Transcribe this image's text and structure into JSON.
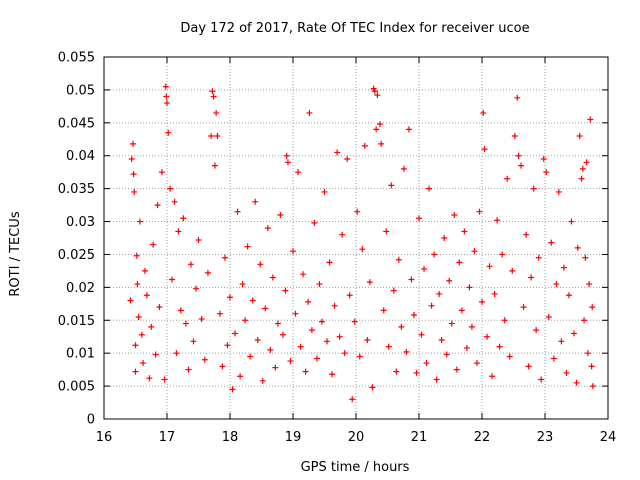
{
  "chart_data": {
    "type": "scatter",
    "title": "Day 172 of 2017, Rate Of TEC Index for receiver ucoe",
    "xlabel": "GPS time / hours",
    "ylabel": "ROTI / TECUs",
    "xlim": [
      16,
      24
    ],
    "ylim": [
      0,
      0.055
    ],
    "x_ticks": [
      16,
      17,
      18,
      19,
      20,
      21,
      22,
      23,
      24
    ],
    "x_tick_labels": [
      "16",
      "17",
      "18",
      "19",
      "20",
      "21",
      "22",
      "23",
      "24"
    ],
    "y_ticks": [
      0,
      0.005,
      0.01,
      0.015,
      0.02,
      0.025,
      0.03,
      0.035,
      0.04,
      0.045,
      0.05,
      0.055
    ],
    "y_tick_labels": [
      "0",
      "0.005",
      "0.01",
      "0.015",
      "0.02",
      "0.025",
      "0.03",
      "0.035",
      "0.04",
      "0.045",
      "0.05",
      "0.055"
    ],
    "grid": true,
    "marker": "+",
    "marker_color": "#ff0000",
    "series": [
      {
        "name": "ROTI",
        "points": [
          [
            16.42,
            0.018
          ],
          [
            16.44,
            0.0395
          ],
          [
            16.46,
            0.0418
          ],
          [
            16.47,
            0.0372
          ],
          [
            16.48,
            0.0345
          ],
          [
            16.5,
            0.0112
          ],
          [
            16.5,
            0.0072
          ],
          [
            16.52,
            0.0248
          ],
          [
            16.53,
            0.0205
          ],
          [
            16.55,
            0.0155
          ],
          [
            16.57,
            0.03
          ],
          [
            16.6,
            0.0128
          ],
          [
            16.62,
            0.0085
          ],
          [
            16.65,
            0.0225
          ],
          [
            16.68,
            0.0188
          ],
          [
            16.72,
            0.0062
          ],
          [
            16.75,
            0.014
          ],
          [
            16.78,
            0.0265
          ],
          [
            16.82,
            0.0098
          ],
          [
            16.85,
            0.0325
          ],
          [
            16.88,
            0.017
          ],
          [
            16.92,
            0.0375
          ],
          [
            16.96,
            0.006
          ],
          [
            16.98,
            0.0505
          ],
          [
            16.99,
            0.049
          ],
          [
            17.0,
            0.048
          ],
          [
            17.02,
            0.0435
          ],
          [
            17.05,
            0.035
          ],
          [
            17.08,
            0.0212
          ],
          [
            17.12,
            0.033
          ],
          [
            17.15,
            0.01
          ],
          [
            17.18,
            0.0285
          ],
          [
            17.22,
            0.0165
          ],
          [
            17.26,
            0.0305
          ],
          [
            17.3,
            0.0145
          ],
          [
            17.34,
            0.0075
          ],
          [
            17.38,
            0.0235
          ],
          [
            17.42,
            0.0118
          ],
          [
            17.46,
            0.0198
          ],
          [
            17.5,
            0.0272
          ],
          [
            17.55,
            0.0152
          ],
          [
            17.6,
            0.009
          ],
          [
            17.65,
            0.0222
          ],
          [
            17.7,
            0.043
          ],
          [
            17.72,
            0.0498
          ],
          [
            17.74,
            0.049
          ],
          [
            17.76,
            0.0385
          ],
          [
            17.78,
            0.0465
          ],
          [
            17.8,
            0.043
          ],
          [
            17.84,
            0.016
          ],
          [
            17.88,
            0.008
          ],
          [
            17.92,
            0.0245
          ],
          [
            17.96,
            0.0112
          ],
          [
            18.0,
            0.0185
          ],
          [
            18.04,
            0.0045
          ],
          [
            18.08,
            0.013
          ],
          [
            18.12,
            0.0315
          ],
          [
            18.16,
            0.0065
          ],
          [
            18.2,
            0.0205
          ],
          [
            18.24,
            0.015
          ],
          [
            18.28,
            0.0262
          ],
          [
            18.32,
            0.0095
          ],
          [
            18.36,
            0.018
          ],
          [
            18.4,
            0.033
          ],
          [
            18.44,
            0.012
          ],
          [
            18.48,
            0.0235
          ],
          [
            18.52,
            0.0058
          ],
          [
            18.56,
            0.0168
          ],
          [
            18.6,
            0.029
          ],
          [
            18.64,
            0.0105
          ],
          [
            18.68,
            0.0215
          ],
          [
            18.72,
            0.0078
          ],
          [
            18.76,
            0.0145
          ],
          [
            18.8,
            0.031
          ],
          [
            18.84,
            0.0128
          ],
          [
            18.88,
            0.0195
          ],
          [
            18.9,
            0.04
          ],
          [
            18.92,
            0.039
          ],
          [
            18.96,
            0.0088
          ],
          [
            19.0,
            0.0255
          ],
          [
            19.04,
            0.016
          ],
          [
            19.08,
            0.0375
          ],
          [
            19.12,
            0.011
          ],
          [
            19.16,
            0.022
          ],
          [
            19.2,
            0.0072
          ],
          [
            19.24,
            0.0178
          ],
          [
            19.26,
            0.0465
          ],
          [
            19.3,
            0.0135
          ],
          [
            19.34,
            0.0298
          ],
          [
            19.38,
            0.0092
          ],
          [
            19.42,
            0.0205
          ],
          [
            19.46,
            0.0148
          ],
          [
            19.5,
            0.0345
          ],
          [
            19.54,
            0.0118
          ],
          [
            19.58,
            0.0238
          ],
          [
            19.62,
            0.0068
          ],
          [
            19.66,
            0.0172
          ],
          [
            19.7,
            0.0405
          ],
          [
            19.74,
            0.0125
          ],
          [
            19.78,
            0.028
          ],
          [
            19.82,
            0.01
          ],
          [
            19.86,
            0.0395
          ],
          [
            19.9,
            0.0188
          ],
          [
            19.94,
            0.003
          ],
          [
            19.98,
            0.0148
          ],
          [
            20.02,
            0.0315
          ],
          [
            20.06,
            0.0095
          ],
          [
            20.1,
            0.0258
          ],
          [
            20.14,
            0.0415
          ],
          [
            20.18,
            0.012
          ],
          [
            20.22,
            0.0208
          ],
          [
            20.26,
            0.0048
          ],
          [
            20.28,
            0.0502
          ],
          [
            20.3,
            0.0498
          ],
          [
            20.32,
            0.044
          ],
          [
            20.34,
            0.0492
          ],
          [
            20.38,
            0.0448
          ],
          [
            20.4,
            0.0418
          ],
          [
            20.44,
            0.0165
          ],
          [
            20.48,
            0.0285
          ],
          [
            20.52,
            0.011
          ],
          [
            20.56,
            0.0355
          ],
          [
            20.6,
            0.0195
          ],
          [
            20.64,
            0.0072
          ],
          [
            20.68,
            0.0242
          ],
          [
            20.72,
            0.014
          ],
          [
            20.76,
            0.038
          ],
          [
            20.8,
            0.0102
          ],
          [
            20.84,
            0.044
          ],
          [
            20.88,
            0.0212
          ],
          [
            20.92,
            0.0158
          ],
          [
            20.96,
            0.007
          ],
          [
            21.0,
            0.0305
          ],
          [
            21.04,
            0.0128
          ],
          [
            21.08,
            0.0228
          ],
          [
            21.12,
            0.0085
          ],
          [
            21.16,
            0.035
          ],
          [
            21.2,
            0.0172
          ],
          [
            21.24,
            0.025
          ],
          [
            21.28,
            0.006
          ],
          [
            21.32,
            0.019
          ],
          [
            21.36,
            0.012
          ],
          [
            21.4,
            0.0275
          ],
          [
            21.44,
            0.0098
          ],
          [
            21.48,
            0.021
          ],
          [
            21.52,
            0.0145
          ],
          [
            21.56,
            0.031
          ],
          [
            21.6,
            0.0075
          ],
          [
            21.64,
            0.0238
          ],
          [
            21.68,
            0.0165
          ],
          [
            21.72,
            0.0285
          ],
          [
            21.76,
            0.0108
          ],
          [
            21.8,
            0.02
          ],
          [
            21.84,
            0.014
          ],
          [
            21.88,
            0.0255
          ],
          [
            21.92,
            0.0085
          ],
          [
            21.96,
            0.0315
          ],
          [
            22.0,
            0.0178
          ],
          [
            22.02,
            0.0465
          ],
          [
            22.04,
            0.041
          ],
          [
            22.08,
            0.0125
          ],
          [
            22.12,
            0.0232
          ],
          [
            22.16,
            0.0065
          ],
          [
            22.2,
            0.019
          ],
          [
            22.24,
            0.0302
          ],
          [
            22.28,
            0.011
          ],
          [
            22.32,
            0.025
          ],
          [
            22.36,
            0.015
          ],
          [
            22.4,
            0.0365
          ],
          [
            22.44,
            0.0095
          ],
          [
            22.48,
            0.0225
          ],
          [
            22.52,
            0.043
          ],
          [
            22.56,
            0.0488
          ],
          [
            22.58,
            0.04
          ],
          [
            22.62,
            0.0385
          ],
          [
            22.66,
            0.017
          ],
          [
            22.7,
            0.028
          ],
          [
            22.74,
            0.008
          ],
          [
            22.78,
            0.0215
          ],
          [
            22.82,
            0.035
          ],
          [
            22.86,
            0.0135
          ],
          [
            22.9,
            0.0245
          ],
          [
            22.94,
            0.006
          ],
          [
            22.98,
            0.0395
          ],
          [
            23.02,
            0.0375
          ],
          [
            23.06,
            0.0155
          ],
          [
            23.1,
            0.0268
          ],
          [
            23.14,
            0.0092
          ],
          [
            23.18,
            0.0205
          ],
          [
            23.22,
            0.0345
          ],
          [
            23.26,
            0.0118
          ],
          [
            23.3,
            0.023
          ],
          [
            23.34,
            0.007
          ],
          [
            23.38,
            0.0188
          ],
          [
            23.42,
            0.03
          ],
          [
            23.46,
            0.013
          ],
          [
            23.5,
            0.0055
          ],
          [
            23.52,
            0.026
          ],
          [
            23.55,
            0.043
          ],
          [
            23.58,
            0.0365
          ],
          [
            23.6,
            0.038
          ],
          [
            23.62,
            0.015
          ],
          [
            23.64,
            0.0245
          ],
          [
            23.66,
            0.039
          ],
          [
            23.68,
            0.01
          ],
          [
            23.7,
            0.0205
          ],
          [
            23.72,
            0.0455
          ],
          [
            23.74,
            0.008
          ],
          [
            23.75,
            0.017
          ],
          [
            23.76,
            0.005
          ]
        ]
      }
    ]
  }
}
